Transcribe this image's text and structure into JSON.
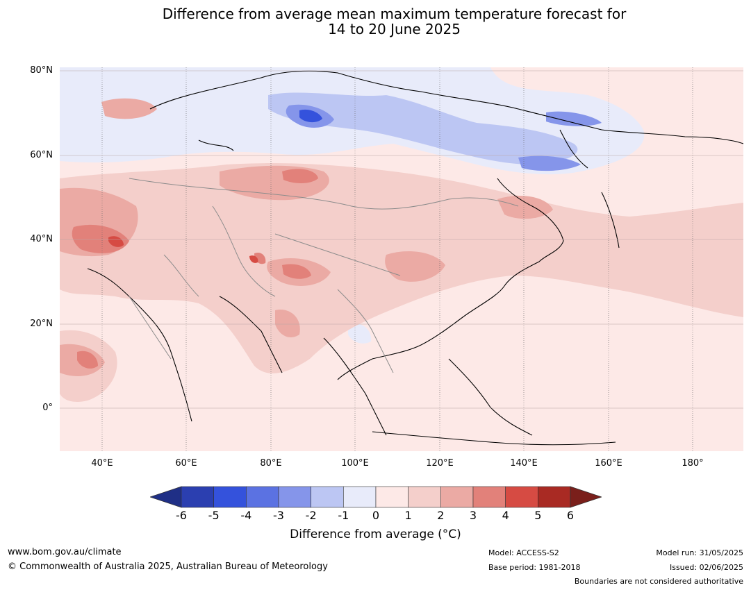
{
  "title": {
    "line1": "Difference from average mean maximum temperature forecast for",
    "line2": "14 to 20 June 2025"
  },
  "map": {
    "lat_labels": [
      "80°N",
      "60°N",
      "40°N",
      "20°N",
      "0°"
    ],
    "lon_labels": [
      "40°E",
      "60°E",
      "80°E",
      "100°E",
      "120°E",
      "140°E",
      "160°E",
      "180°"
    ],
    "background_anomaly_color": "#fde9e7"
  },
  "colorbar": {
    "ticks": [
      "-6",
      "-5",
      "-4",
      "-3",
      "-2",
      "-1",
      "0",
      "1",
      "2",
      "3",
      "4",
      "5",
      "6"
    ],
    "colors": [
      "#1f2f86",
      "#2b3fb0",
      "#3452dc",
      "#5b72e2",
      "#8595ea",
      "#bcc6f3",
      "#e8ebfa",
      "#fde9e7",
      "#f4cfcb",
      "#ebaaa4",
      "#e2817a",
      "#d64b43",
      "#a92a23",
      "#7a1f1b"
    ],
    "label": "Difference from average (°C)"
  },
  "footer": {
    "website": "www.bom.gov.au/climate",
    "copyright": "© Commonwealth of Australia 2025, Australian Bureau of Meteorology",
    "model": "Model: ACCESS-S2",
    "base_period": "Base period: 1981-2018",
    "model_run": "Model run: 31/05/2025",
    "issued": "Issued: 02/06/2025",
    "disclaimer": "Boundaries are not considered authoritative"
  }
}
